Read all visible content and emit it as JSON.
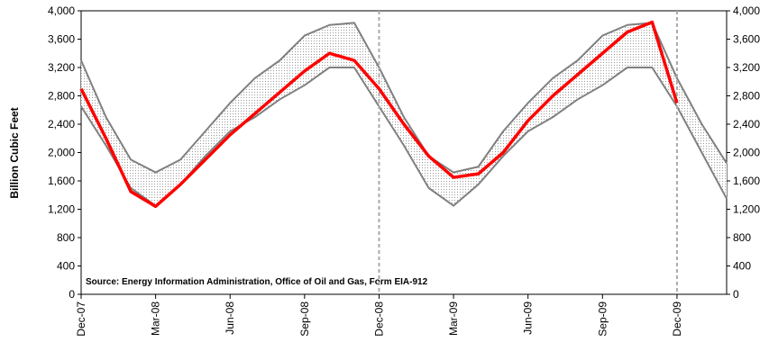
{
  "chart_data": {
    "type": "line",
    "y_label": "Billion Cubic Feet",
    "annotation": "Source:  Energy Information Administration, Office of Oil and Gas, Form EIA-912",
    "x": [
      "Dec-07",
      "Jan-08",
      "Feb-08",
      "Mar-08",
      "Apr-08",
      "May-08",
      "Jun-08",
      "Jul-08",
      "Aug-08",
      "Sep-08",
      "Oct-08",
      "Nov-08",
      "Dec-08",
      "Jan-09",
      "Feb-09",
      "Mar-09",
      "Apr-09",
      "May-09",
      "Jun-09",
      "Jul-09",
      "Aug-09",
      "Sep-09",
      "Oct-09",
      "Nov-09",
      "Dec-09",
      "Jan-10",
      "Feb-10"
    ],
    "xticks": [
      "Dec-07",
      "Mar-08",
      "Jun-08",
      "Sep-08",
      "Dec-08",
      "Mar-09",
      "Jun-09",
      "Sep-09",
      "Dec-09"
    ],
    "vlines": [
      "Dec-08",
      "Dec-09"
    ],
    "band": {
      "color": "#808080",
      "fill": "#d8d8d8",
      "upper": [
        3300,
        2500,
        1900,
        1720,
        1900,
        2300,
        2700,
        3050,
        3300,
        3650,
        3800,
        3830,
        3200,
        2500,
        1950,
        1720,
        1800,
        2300,
        2700,
        3050,
        3300,
        3650,
        3800,
        3830,
        3050,
        2400,
        1850
      ],
      "lower": [
        2650,
        2100,
        1500,
        1250,
        1550,
        1950,
        2300,
        2500,
        2750,
        2950,
        3200,
        3200,
        2650,
        2100,
        1500,
        1250,
        1550,
        1950,
        2300,
        2500,
        2750,
        2950,
        3200,
        3200,
        2650,
        2000,
        1350
      ]
    },
    "series": [
      {
        "color": "#ff0000",
        "values": [
          2900,
          2200,
          1450,
          1240,
          1550,
          1900,
          2250,
          2550,
          2850,
          3150,
          3400,
          3300,
          2900,
          2400,
          1950,
          1650,
          1700,
          2000,
          2450,
          2800,
          3100,
          3400,
          3700,
          3840,
          2700,
          null,
          null
        ]
      }
    ],
    "ylim": [
      0,
      4000
    ],
    "yticks": [
      0,
      400,
      800,
      {
        "value": 1200,
        "label": "1,200"
      },
      {
        "value": 1600,
        "label": "1,600"
      },
      {
        "value": 2000,
        "label": "2,000"
      },
      {
        "value": 2400,
        "label": "2,400"
      },
      {
        "value": 2800,
        "label": "2,800"
      },
      {
        "value": 3200,
        "label": "3,200"
      },
      {
        "value": 3600,
        "label": "3,600"
      },
      {
        "value": 4000,
        "label": "4,000"
      }
    ],
    "y2lim": [
      0,
      4000
    ],
    "y2ticks": [
      0,
      400,
      800,
      {
        "value": 1200,
        "label": "1,200"
      },
      {
        "value": 1600,
        "label": "1,600"
      },
      {
        "value": 2000,
        "label": "2,000"
      },
      {
        "value": 2400,
        "label": "2,400"
      },
      {
        "value": 2800,
        "label": "2,800"
      },
      {
        "value": 3200,
        "label": "3,200"
      },
      {
        "value": 3600,
        "label": "3,600"
      },
      {
        "value": 4000,
        "label": "4,000"
      }
    ]
  }
}
